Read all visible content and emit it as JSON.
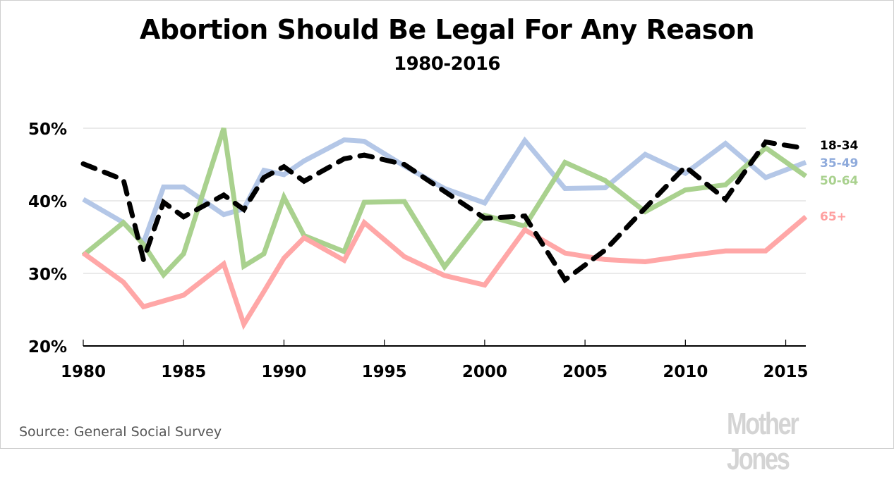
{
  "chart_data": {
    "type": "line",
    "title": "Abortion Should Be Legal For Any Reason",
    "subtitle": "1980-2016",
    "xlabel": "",
    "ylabel": "",
    "xlim": [
      1980,
      2016
    ],
    "ylim": [
      20,
      50
    ],
    "x_ticks": [
      1980,
      1985,
      1990,
      1995,
      2000,
      2005,
      2010,
      2015
    ],
    "x_tick_labels": [
      "1980",
      "1985",
      "1990",
      "1995",
      "2000",
      "2005",
      "2010",
      "2015"
    ],
    "y_ticks": [
      20,
      30,
      40,
      50
    ],
    "y_tick_labels": [
      "20%",
      "30%",
      "40%",
      "50%"
    ],
    "grid": "horizontal",
    "legend_placement": "right (direct labels)",
    "x": [
      1980,
      1982,
      1983,
      1984,
      1985,
      1987,
      1988,
      1989,
      1990,
      1991,
      1993,
      1994,
      1996,
      1998,
      2000,
      2002,
      2004,
      2006,
      2008,
      2010,
      2012,
      2014,
      2016
    ],
    "series": [
      {
        "name": "35-49",
        "color": "#b4c7e7",
        "label_color": "#8eaadb",
        "dashed": false,
        "values": [
          40.2,
          37.0,
          34.2,
          41.9,
          41.9,
          38.1,
          38.9,
          44.2,
          43.6,
          45.5,
          48.4,
          48.2,
          44.8,
          41.7,
          39.7,
          48.3,
          41.7,
          41.8,
          46.4,
          43.8,
          47.9,
          43.2,
          45.3
        ]
      },
      {
        "name": "50-64",
        "color": "#a9d18e",
        "label_color": "#a9d18e",
        "dashed": false,
        "values": [
          32.5,
          37.0,
          34.0,
          29.8,
          32.7,
          50.0,
          31.0,
          32.7,
          40.5,
          35.2,
          33.0,
          39.8,
          39.9,
          30.9,
          38.0,
          36.5,
          45.3,
          42.8,
          38.5,
          41.5,
          42.2,
          47.3,
          43.4
        ]
      },
      {
        "name": "65+",
        "color": "#ffa7a7",
        "label_color": "#ff9f9f",
        "dashed": false,
        "values": [
          32.8,
          28.8,
          25.4,
          26.2,
          27.0,
          31.3,
          23.0,
          27.5,
          32.1,
          34.9,
          31.8,
          37.0,
          32.3,
          29.7,
          28.4,
          36.0,
          32.8,
          31.9,
          31.6,
          32.4,
          33.1,
          33.1,
          37.8
        ]
      },
      {
        "name": "18-34",
        "color": "#000000",
        "label_color": "#000000",
        "dashed": true,
        "values": [
          45.1,
          42.9,
          31.9,
          39.8,
          37.8,
          40.8,
          38.8,
          43.2,
          44.7,
          42.7,
          45.8,
          46.3,
          45.0,
          41.3,
          37.6,
          37.9,
          29.1,
          33.2,
          39.0,
          44.7,
          40.2,
          48.1,
          47.2
        ]
      }
    ],
    "legend_order": [
      "18-34",
      "35-49",
      "50-64",
      "65+"
    ],
    "annotations": []
  },
  "footer": {
    "source": "Source: General Social Survey",
    "logo": "Mother Jones"
  }
}
